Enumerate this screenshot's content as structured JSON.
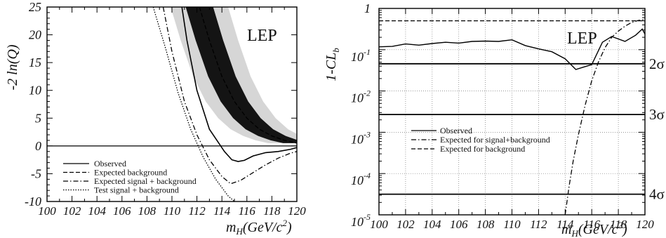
{
  "chart_data": [
    {
      "type": "line",
      "xlim": [
        100,
        120
      ],
      "ylim": [
        -10,
        25
      ],
      "x_ticks": [
        "100",
        "102",
        "104",
        "106",
        "108",
        "110",
        "112",
        "114",
        "116",
        "118",
        "120"
      ],
      "y_ticks": [
        "25",
        "20",
        "15",
        "10",
        "5",
        "0",
        "-5",
        "-10"
      ],
      "ylabel": "-2 ln(Q)",
      "xlabel": "m_H(GeV/c²)",
      "xlabel_main": "m",
      "xlabel_sub": "H",
      "xlabel_rest": "(GeV/c",
      "xlabel_sup": "2",
      "xlabel_end": ")",
      "annotation": "LEP",
      "legend": [
        "Observed",
        "Expected background",
        "Expected signal + background",
        "Test signal + background"
      ],
      "series": [
        {
          "name": "Observed",
          "style": "solid",
          "x": [
            110.8,
            111.2,
            112,
            113,
            113.6,
            114.2,
            114.8,
            115.3,
            115.8,
            116.5,
            117.5,
            118.5,
            119.5,
            120
          ],
          "y": [
            25,
            19,
            10,
            3,
            1,
            -1,
            -2.5,
            -2.8,
            -2.6,
            -1.8,
            -1.2,
            -1,
            -0.6,
            -0.3
          ]
        },
        {
          "name": "Expected background",
          "style": "dashed",
          "x": [
            112.2,
            113,
            114,
            115,
            116,
            117,
            118,
            119,
            120
          ],
          "y": [
            25,
            19,
            12.5,
            8,
            5,
            3,
            1.8,
            1,
            0.5
          ]
        },
        {
          "name": "Expected signal + background",
          "style": "dashdot",
          "x": [
            109.3,
            110,
            111,
            112,
            113,
            114,
            114.7,
            115.5,
            116.5,
            117.5,
            118.5,
            119.5,
            120
          ],
          "y": [
            25,
            17,
            8,
            2,
            -2.5,
            -5.5,
            -6.8,
            -6.2,
            -4.8,
            -3.4,
            -2.2,
            -1.3,
            -1
          ]
        },
        {
          "name": "Test signal + background",
          "style": "dotted",
          "x": [
            108.5,
            109.5,
            110.5,
            111.5,
            112.5,
            113.5,
            114.5,
            115
          ],
          "y": [
            25,
            17.5,
            9.5,
            3,
            -2,
            -6,
            -9,
            -10
          ]
        }
      ]
    },
    {
      "type": "line",
      "xlim": [
        100,
        120
      ],
      "log_y": true,
      "ylim_log10": [
        -5,
        0
      ],
      "x_ticks": [
        "100",
        "102",
        "104",
        "106",
        "108",
        "110",
        "112",
        "114",
        "116",
        "118",
        "120"
      ],
      "y_ticks": [
        {
          "base": "",
          "exp": "",
          "text": "1",
          "log": 0
        },
        {
          "base": "10",
          "exp": "-1",
          "log": -1
        },
        {
          "base": "10",
          "exp": "-2",
          "log": -2
        },
        {
          "base": "10",
          "exp": "-3",
          "log": -3
        },
        {
          "base": "10",
          "exp": "-4",
          "log": -4
        },
        {
          "base": "10",
          "exp": "-5",
          "log": -5
        }
      ],
      "ylabel": "1-CL_b",
      "ylabel_main": "1-CL",
      "ylabel_sub": "b",
      "xlabel_main": "m",
      "xlabel_sub": "H",
      "xlabel_rest": "(GeV/c",
      "xlabel_sup": "2",
      "xlabel_end": ")",
      "annotation": "LEP",
      "sigma_lines": [
        {
          "label": "2σ",
          "log": -1.34
        },
        {
          "label": "3σ",
          "log": -2.57
        },
        {
          "label": "4σ",
          "log": -4.5
        }
      ],
      "legend": [
        "Observed",
        "Expected for signal+background",
        "Expected for background"
      ],
      "series": [
        {
          "name": "Observed",
          "style": "solid",
          "x": [
            100,
            101,
            102,
            103,
            104,
            105,
            106,
            107,
            108,
            109,
            110,
            111,
            112,
            113,
            114,
            114.8,
            115.3,
            116,
            116.8,
            117.5,
            118.5,
            119.3,
            119.8,
            120
          ],
          "y": [
            -0.93,
            -0.92,
            -0.86,
            -0.89,
            -0.85,
            -0.82,
            -0.84,
            -0.8,
            -0.79,
            -0.8,
            -0.76,
            -0.9,
            -0.98,
            -1.05,
            -1.22,
            -1.48,
            -1.43,
            -1.36,
            -0.82,
            -0.68,
            -0.8,
            -0.65,
            -0.5,
            -0.62
          ]
        },
        {
          "name": "Expected for signal+background",
          "style": "dashdot",
          "x": [
            114,
            114.3,
            114.6,
            115,
            115.5,
            116,
            116.5,
            117,
            117.5,
            118,
            118.5,
            119,
            119.5,
            120
          ],
          "y": [
            -5,
            -4.3,
            -3.7,
            -3.05,
            -2.35,
            -1.75,
            -1.3,
            -0.95,
            -0.7,
            -0.55,
            -0.43,
            -0.34,
            -0.29,
            -0.27
          ]
        },
        {
          "name": "Expected for background",
          "style": "dashed",
          "x": [
            100,
            120
          ],
          "y": [
            -0.3,
            -0.3
          ]
        }
      ]
    }
  ]
}
